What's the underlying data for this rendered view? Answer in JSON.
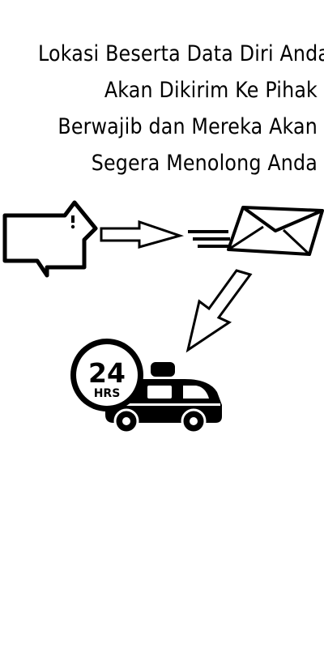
{
  "headline": {
    "lines": [
      "Lokasi Beserta Data Diri Anda",
      "Akan Dikirim Ke Pihak",
      "Berwajib dan Mereka Akan",
      "Segera Menolong Anda"
    ]
  },
  "badge": {
    "number": "24",
    "unit": "HRS"
  },
  "icons": {
    "house": "home-icon",
    "arrow_right": "arrow-right-icon",
    "envelope": "fast-mail-icon",
    "arrow_down": "arrow-down-left-icon",
    "vehicle": "emergency-van-icon"
  },
  "colors": {
    "ink": "#000000",
    "background": "#ffffff"
  }
}
